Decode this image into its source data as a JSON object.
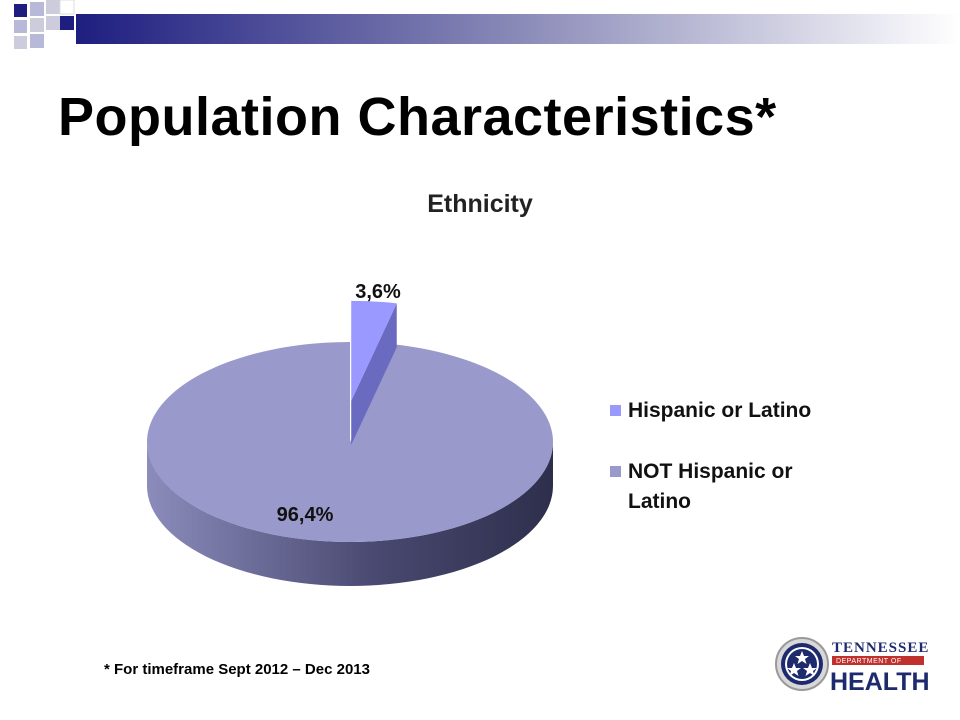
{
  "slide": {
    "title": "Population Characteristics*",
    "footnote": "* For timeframe Sept 2012 – Dec 2013"
  },
  "logo": {
    "line1": "TENNESSEE",
    "line2": "DEPARTMENT OF",
    "line3": "HEALTH"
  },
  "colors": {
    "hispanic": "#9999ff",
    "not_hispanic": "#9999cc",
    "slide_accent": "#1e1e80"
  },
  "chart_data": {
    "type": "pie",
    "title": "Ethnicity",
    "categories": [
      "Hispanic or Latino",
      "NOT Hispanic or Latino"
    ],
    "values": [
      3.6,
      96.4
    ],
    "value_labels": [
      "3,6%",
      "96,4%"
    ],
    "exploded": [
      true,
      false
    ],
    "style": "3d",
    "legend": {
      "position": "right",
      "entries": [
        "Hispanic or Latino",
        "NOT Hispanic or",
        "Latino"
      ]
    }
  }
}
